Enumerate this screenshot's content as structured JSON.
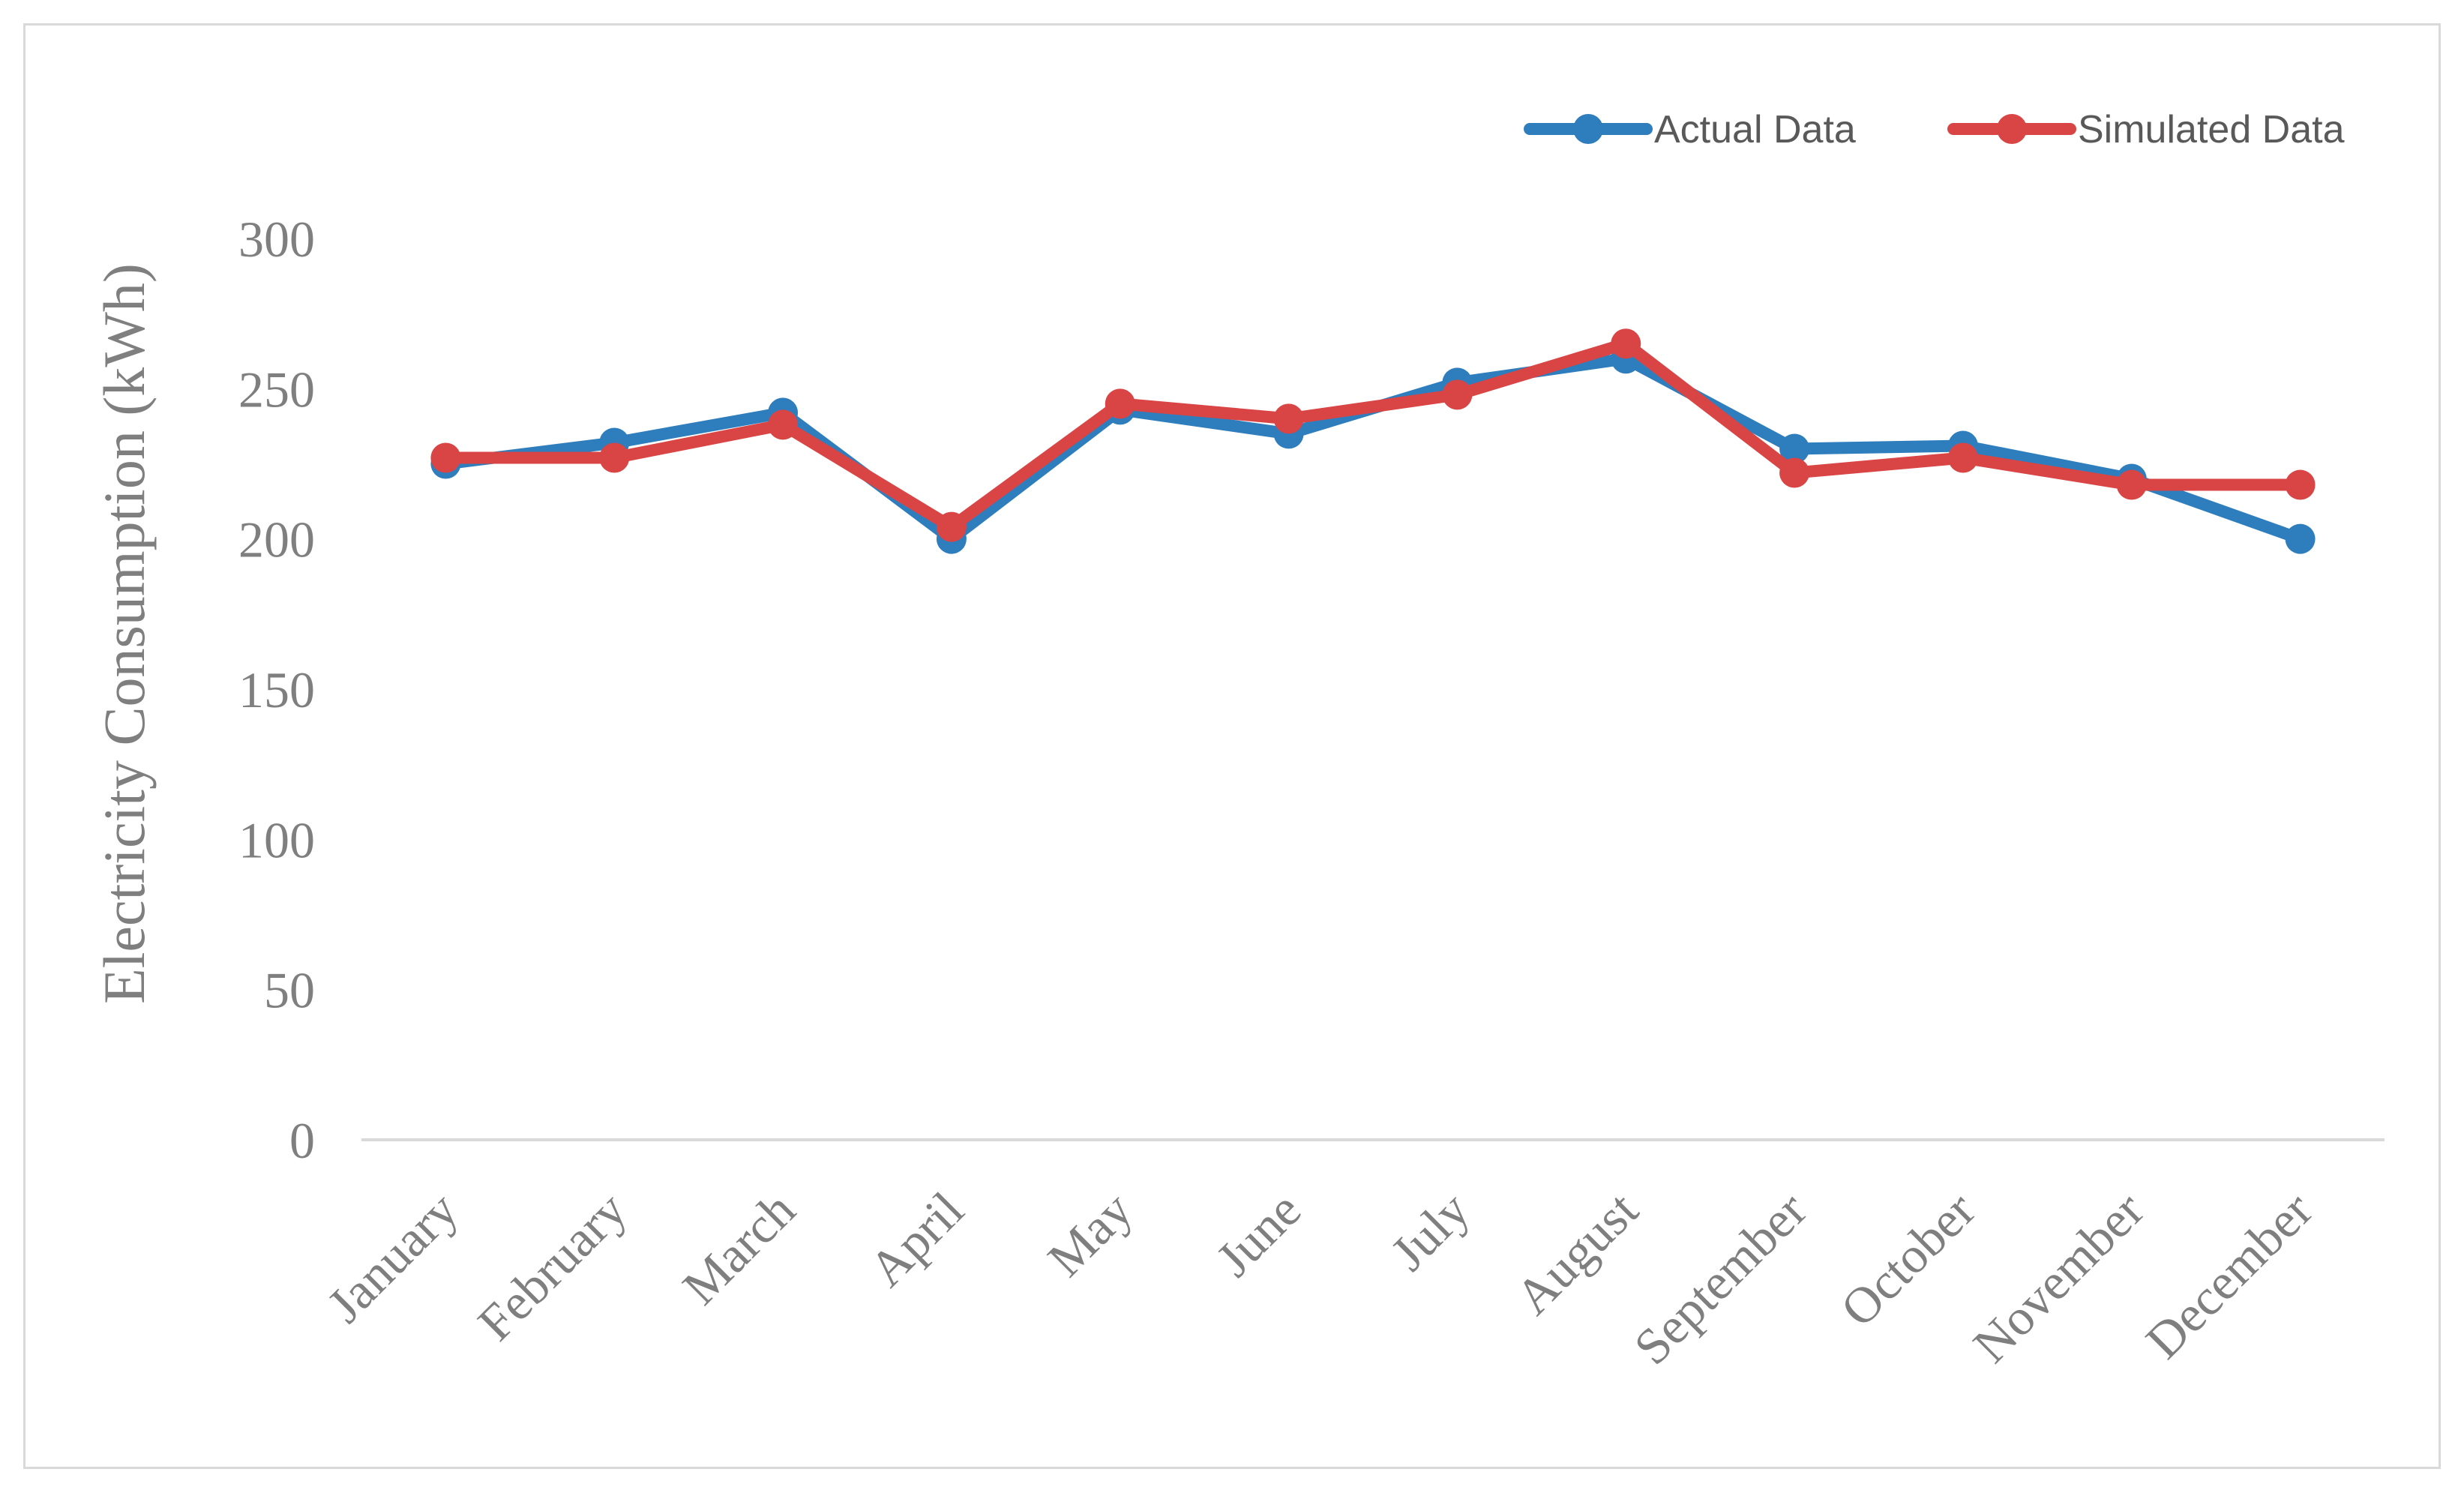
{
  "chart_data": {
    "type": "line",
    "title": "",
    "xlabel": "",
    "ylabel": "Electricity Consumption (kWh)",
    "ylim": [
      0,
      300
    ],
    "yticks": [
      0,
      50,
      100,
      150,
      200,
      250,
      300
    ],
    "grid": false,
    "legend_position": "top-right",
    "categories": [
      "January",
      "February",
      "March",
      "April",
      "May",
      "June",
      "July",
      "August",
      "September",
      "October",
      "November",
      "December"
    ],
    "series": [
      {
        "name": "Actual Data",
        "color": "#2e7dbd",
        "values": [
          225,
          232,
          242,
          200,
          243,
          235,
          252,
          260,
          230,
          231,
          220,
          200
        ]
      },
      {
        "name": "Simulated Data",
        "color": "#d94545",
        "values": [
          227,
          227,
          238,
          204,
          245,
          240,
          248,
          265,
          222,
          227,
          218,
          218
        ]
      }
    ]
  }
}
